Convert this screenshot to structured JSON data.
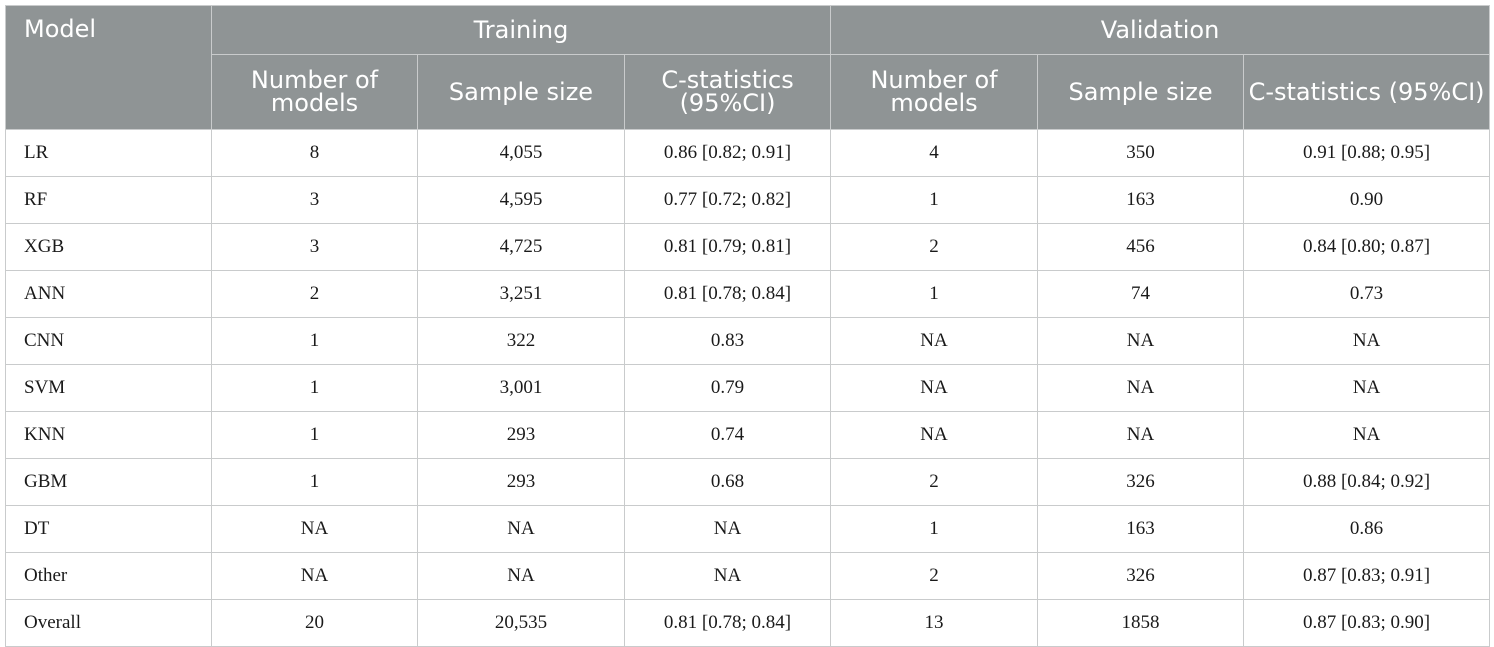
{
  "header": {
    "model": "Model",
    "training": "Training",
    "validation": "Validation",
    "sub": {
      "number_of_models": "Number of models",
      "sample_size": "Sample size",
      "c_statistics": "C-statistics (95%CI)"
    }
  },
  "rows": [
    {
      "model": "LR",
      "train_n": "8",
      "train_size": "4,055",
      "train_c": "0.86 [0.82; 0.91]",
      "val_n": "4",
      "val_size": "350",
      "val_c": "0.91 [0.88; 0.95]"
    },
    {
      "model": "RF",
      "train_n": "3",
      "train_size": "4,595",
      "train_c": "0.77 [0.72; 0.82]",
      "val_n": "1",
      "val_size": "163",
      "val_c": "0.90"
    },
    {
      "model": "XGB",
      "train_n": "3",
      "train_size": "4,725",
      "train_c": "0.81 [0.79; 0.81]",
      "val_n": "2",
      "val_size": "456",
      "val_c": "0.84 [0.80; 0.87]"
    },
    {
      "model": "ANN",
      "train_n": "2",
      "train_size": "3,251",
      "train_c": "0.81 [0.78; 0.84]",
      "val_n": "1",
      "val_size": "74",
      "val_c": "0.73"
    },
    {
      "model": "CNN",
      "train_n": "1",
      "train_size": "322",
      "train_c": "0.83",
      "val_n": "NA",
      "val_size": "NA",
      "val_c": "NA"
    },
    {
      "model": "SVM",
      "train_n": "1",
      "train_size": "3,001",
      "train_c": "0.79",
      "val_n": "NA",
      "val_size": "NA",
      "val_c": "NA"
    },
    {
      "model": "KNN",
      "train_n": "1",
      "train_size": "293",
      "train_c": "0.74",
      "val_n": "NA",
      "val_size": "NA",
      "val_c": "NA"
    },
    {
      "model": "GBM",
      "train_n": "1",
      "train_size": "293",
      "train_c": "0.68",
      "val_n": "2",
      "val_size": "326",
      "val_c": "0.88 [0.84; 0.92]"
    },
    {
      "model": "DT",
      "train_n": "NA",
      "train_size": "NA",
      "train_c": "NA",
      "val_n": "1",
      "val_size": "163",
      "val_c": "0.86"
    },
    {
      "model": "Other",
      "train_n": "NA",
      "train_size": "NA",
      "train_c": "NA",
      "val_n": "2",
      "val_size": "326",
      "val_c": "0.87 [0.83; 0.91]"
    },
    {
      "model": "Overall",
      "train_n": "20",
      "train_size": "20,535",
      "train_c": "0.81 [0.78; 0.84]",
      "val_n": "13",
      "val_size": "1858",
      "val_c": "0.87 [0.83; 0.90]"
    }
  ]
}
